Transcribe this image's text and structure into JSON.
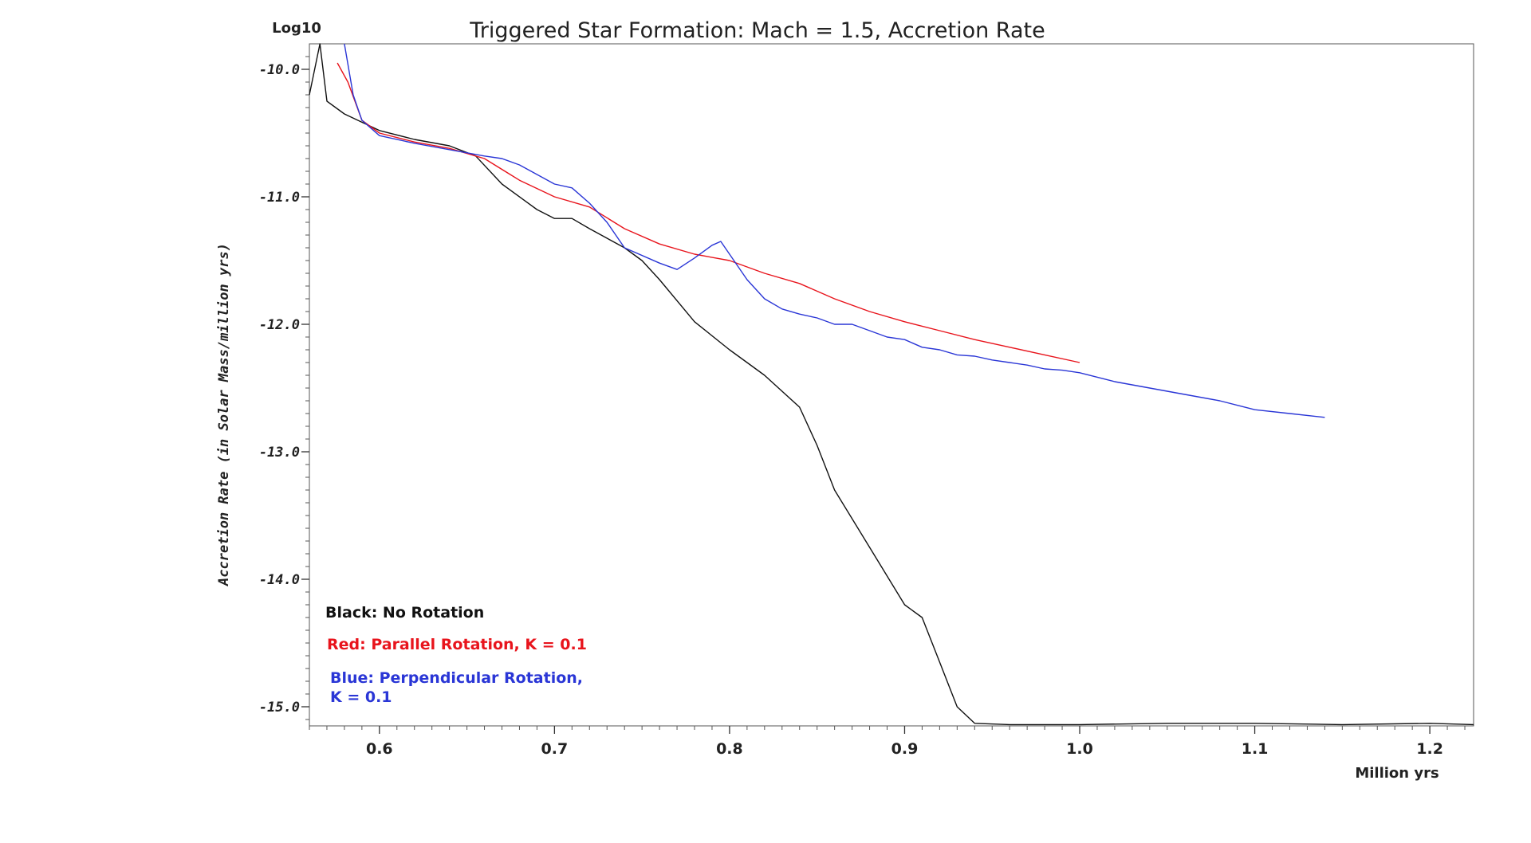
{
  "chart_data": {
    "type": "line",
    "title": "Triggered Star Formation: Mach = 1.5, Accretion Rate",
    "y_unit_label": "Log10",
    "ylabel": "Accretion Rate  (in Solar Mass/million yrs)",
    "xlabel": "Million yrs",
    "xlim": [
      0.56,
      1.225
    ],
    "ylim": [
      -15.15,
      -9.8
    ],
    "x_ticks": [
      0.6,
      0.7,
      0.8,
      0.9,
      1.0,
      1.1,
      1.2
    ],
    "x_tick_labels": [
      "0.6",
      "0.7",
      "0.8",
      "0.9",
      "1.0",
      "1.1",
      "1.2"
    ],
    "y_ticks": [
      -10.0,
      -11.0,
      -12.0,
      -13.0,
      -14.0,
      -15.0
    ],
    "y_tick_labels": [
      "-10.0",
      "-11.0",
      "-12.0",
      "-13.0",
      "-14.0",
      "-15.0"
    ],
    "grid": false,
    "legend_position": "bottom-left",
    "legend": [
      {
        "text": "Black: No Rotation",
        "color": "#111111"
      },
      {
        "text": "Red: Parallel Rotation, K = 0.1",
        "color": "#e8141c"
      },
      {
        "text": "Blue: Perpendicular Rotation,",
        "text2": "K = 0.1",
        "color": "#2a36d6"
      }
    ],
    "series": [
      {
        "color": "#111111",
        "x": [
          0.56,
          0.566,
          0.57,
          0.58,
          0.6,
          0.62,
          0.64,
          0.655,
          0.67,
          0.69,
          0.7,
          0.71,
          0.72,
          0.74,
          0.75,
          0.76,
          0.78,
          0.8,
          0.81,
          0.82,
          0.84,
          0.85,
          0.86,
          0.88,
          0.9,
          0.91,
          0.92,
          0.93,
          0.94,
          0.96,
          1.0,
          1.05,
          1.1,
          1.15,
          1.2,
          1.225
        ],
        "y": [
          -10.2,
          -9.8,
          -10.25,
          -10.35,
          -10.48,
          -10.55,
          -10.6,
          -10.68,
          -10.9,
          -11.1,
          -11.17,
          -11.17,
          -11.25,
          -11.4,
          -11.5,
          -11.65,
          -11.98,
          -12.2,
          -12.3,
          -12.4,
          -12.65,
          -12.95,
          -13.3,
          -13.75,
          -14.2,
          -14.3,
          -14.65,
          -15.0,
          -15.13,
          -15.14,
          -15.14,
          -15.13,
          -15.13,
          -15.14,
          -15.13,
          -15.14
        ]
      },
      {
        "color": "#e8141c",
        "x": [
          0.576,
          0.582,
          0.59,
          0.6,
          0.62,
          0.64,
          0.66,
          0.68,
          0.7,
          0.72,
          0.74,
          0.76,
          0.78,
          0.8,
          0.82,
          0.84,
          0.86,
          0.88,
          0.9,
          0.92,
          0.94,
          0.96,
          0.98,
          1.0
        ],
        "y": [
          -9.95,
          -10.1,
          -10.4,
          -10.5,
          -10.57,
          -10.62,
          -10.7,
          -10.87,
          -11.0,
          -11.08,
          -11.25,
          -11.37,
          -11.45,
          -11.5,
          -11.6,
          -11.68,
          -11.8,
          -11.9,
          -11.98,
          -12.05,
          -12.12,
          -12.18,
          -12.24,
          -12.3
        ]
      },
      {
        "color": "#2a36d6",
        "x": [
          0.58,
          0.585,
          0.59,
          0.6,
          0.62,
          0.64,
          0.66,
          0.67,
          0.68,
          0.7,
          0.71,
          0.72,
          0.73,
          0.74,
          0.76,
          0.77,
          0.78,
          0.79,
          0.795,
          0.8,
          0.81,
          0.82,
          0.83,
          0.84,
          0.85,
          0.86,
          0.87,
          0.88,
          0.89,
          0.9,
          0.91,
          0.92,
          0.93,
          0.94,
          0.95,
          0.96,
          0.97,
          0.98,
          0.99,
          1.0,
          1.02,
          1.04,
          1.06,
          1.08,
          1.1,
          1.12,
          1.14
        ],
        "y": [
          -9.8,
          -10.2,
          -10.4,
          -10.52,
          -10.58,
          -10.63,
          -10.68,
          -10.7,
          -10.75,
          -10.9,
          -10.93,
          -11.05,
          -11.2,
          -11.4,
          -11.52,
          -11.57,
          -11.48,
          -11.38,
          -11.35,
          -11.45,
          -11.65,
          -11.8,
          -11.88,
          -11.92,
          -11.95,
          -12.0,
          -12.0,
          -12.05,
          -12.1,
          -12.12,
          -12.18,
          -12.2,
          -12.24,
          -12.25,
          -12.28,
          -12.3,
          -12.32,
          -12.35,
          -12.36,
          -12.38,
          -12.45,
          -12.5,
          -12.55,
          -12.6,
          -12.67,
          -12.7,
          -12.73
        ]
      }
    ]
  }
}
